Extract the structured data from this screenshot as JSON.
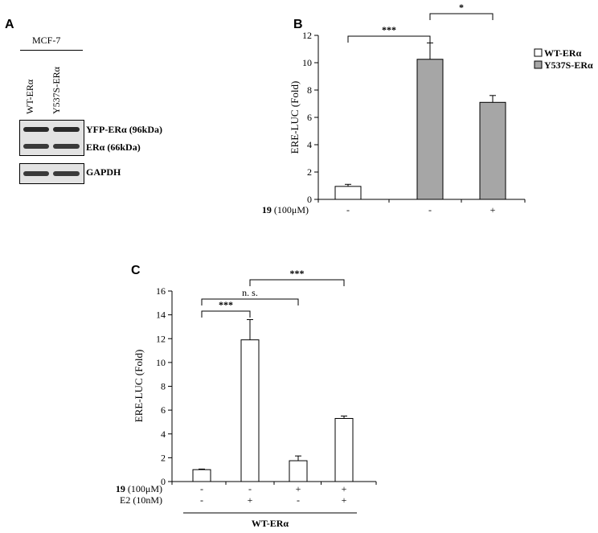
{
  "panels": {
    "a": "A",
    "b": "B",
    "c": "C"
  },
  "blot": {
    "cell_line": "MCF-7",
    "lanes": [
      "WT-ERα",
      "Y537S-ERα"
    ],
    "bands": [
      "YFP-ERα (96kDa)",
      "ERα (66kDa)",
      "GAPDH"
    ]
  },
  "chart_data": [
    {
      "id": "B",
      "type": "bar",
      "ylabel": "ERE-LUC (Fold)",
      "ylim": [
        0,
        12
      ],
      "yticks": [
        0,
        2,
        4,
        6,
        8,
        10,
        12
      ],
      "legend": {
        "placement": "top-right",
        "entries": [
          {
            "name": "WT-ERα",
            "color": "#ffffff"
          },
          {
            "name": "Y537S-ERα",
            "color": "#a6a6a6"
          }
        ]
      },
      "condition_rows": [
        {
          "label_bold": "19",
          "label_rest": " (100μM)",
          "values": [
            "-",
            "-",
            "+"
          ]
        }
      ],
      "bars": [
        {
          "value": 0.95,
          "error": 0.15,
          "color": "#ffffff"
        },
        {
          "value": 10.25,
          "error": 1.2,
          "color": "#a6a6a6"
        },
        {
          "value": 7.1,
          "error": 0.5,
          "color": "#a6a6a6"
        }
      ],
      "significance": [
        {
          "from": 0,
          "to": 1,
          "label": "***"
        },
        {
          "from": 1,
          "to": 2,
          "label": "*"
        }
      ]
    },
    {
      "id": "C",
      "type": "bar",
      "ylabel": "ERE-LUC (Fold)",
      "ylim": [
        0,
        16
      ],
      "yticks": [
        0,
        2,
        4,
        6,
        8,
        10,
        12,
        14,
        16
      ],
      "condition_rows": [
        {
          "label_bold": "19",
          "label_rest": " (100μM)",
          "values": [
            "-",
            "-",
            "+",
            "+"
          ]
        },
        {
          "label_bold": "",
          "label_rest": "E2 (10nM)",
          "values": [
            "-",
            "+",
            "-",
            "+"
          ]
        }
      ],
      "group_label": "WT-ERα",
      "bars": [
        {
          "value": 1.0,
          "error": 0.05,
          "color": "#ffffff"
        },
        {
          "value": 11.9,
          "error": 1.7,
          "color": "#ffffff"
        },
        {
          "value": 1.75,
          "error": 0.4,
          "color": "#ffffff"
        },
        {
          "value": 5.3,
          "error": 0.2,
          "color": "#ffffff"
        }
      ],
      "significance": [
        {
          "from": 0,
          "to": 1,
          "label": "***"
        },
        {
          "from": 0,
          "to": 2,
          "label": "n. s."
        },
        {
          "from": 1,
          "to": 3,
          "label": "***"
        }
      ]
    }
  ]
}
